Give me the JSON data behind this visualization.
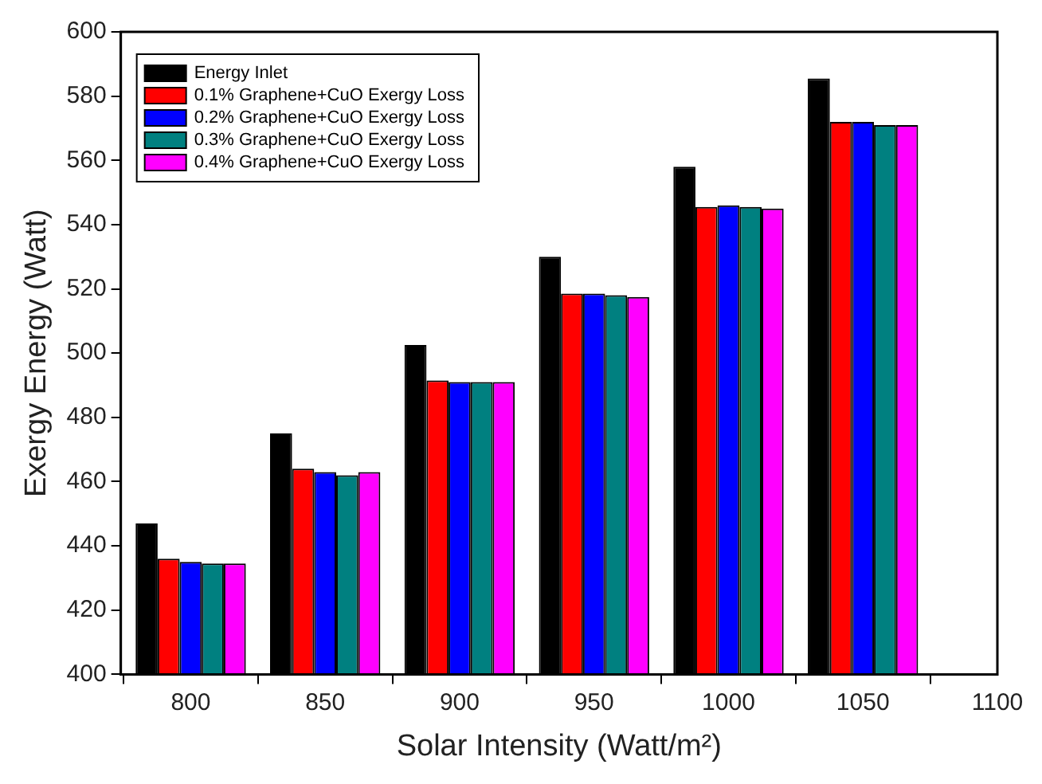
{
  "chart_data": {
    "type": "bar",
    "xlabel": "Solar Intensity (Watt/m²)",
    "ylabel": "Exergy Energy (Watt)",
    "x": [
      800,
      850,
      900,
      950,
      1000,
      1050
    ],
    "xlim": [
      774,
      1100
    ],
    "xticks": [
      800,
      850,
      900,
      950,
      1000,
      1050,
      1100
    ],
    "ylim": [
      400,
      600
    ],
    "yticks": [
      400,
      420,
      440,
      460,
      480,
      500,
      520,
      540,
      560,
      580,
      600
    ],
    "grid": false,
    "legend": "top left",
    "series": [
      {
        "name": "Energy Inlet",
        "color": "#000000",
        "values": [
          447,
          475,
          502.5,
          530,
          558,
          585.5
        ]
      },
      {
        "name": "0.1% Graphene+CuO Exergy Loss",
        "color": "#ff0000",
        "values": [
          436,
          464,
          491.5,
          518.5,
          545.5,
          572
        ]
      },
      {
        "name": "0.2% Graphene+CuO Exergy Loss",
        "color": "#0000ff",
        "values": [
          435,
          463,
          491,
          518.5,
          546,
          572
        ]
      },
      {
        "name": "0.3% Graphene+CuO Exergy Loss",
        "color": "#008080",
        "values": [
          434.5,
          462,
          491,
          518,
          545.5,
          571
        ]
      },
      {
        "name": "0.4% Graphene+CuO Exergy Loss",
        "color": "#ff00ff",
        "values": [
          434.5,
          463,
          491,
          517.5,
          545,
          571
        ]
      }
    ]
  }
}
